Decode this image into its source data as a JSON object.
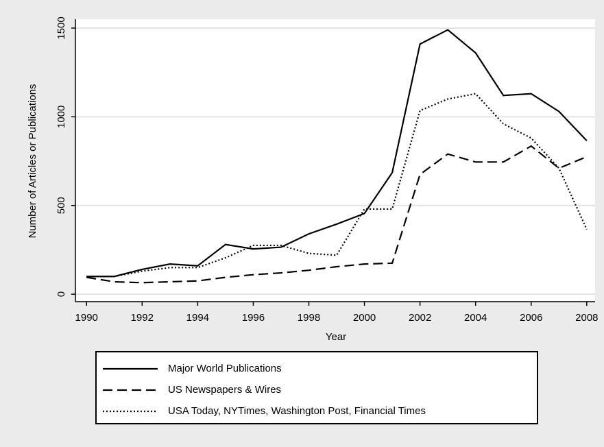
{
  "chart_data": {
    "type": "line",
    "x_label": "Year",
    "y_label": "Number of Articles or Publications",
    "x": [
      1990,
      1991,
      1992,
      1993,
      1994,
      1995,
      1996,
      1997,
      1998,
      1999,
      2000,
      2001,
      2002,
      2003,
      2004,
      2005,
      2006,
      2007,
      2008
    ],
    "xlim": [
      1989.6,
      2008.3
    ],
    "xticks": [
      1990,
      1992,
      1994,
      1996,
      1998,
      2000,
      2002,
      2004,
      2006,
      2008
    ],
    "ylim": [
      -42,
      1550
    ],
    "yticks": [
      0,
      500,
      1000,
      1500
    ],
    "grid": true,
    "legend": "bottom",
    "series": [
      {
        "name": "Major World Publications",
        "color": "#000000",
        "dash": "solid",
        "values": [
          100,
          100,
          140,
          170,
          160,
          280,
          255,
          265,
          340,
          395,
          455,
          685,
          1410,
          1490,
          1360,
          1120,
          1130,
          1030,
          865
        ]
      },
      {
        "name": "US Newspapers & Wires",
        "color": "#000000",
        "dash": "dashed",
        "values": [
          95,
          70,
          65,
          70,
          75,
          95,
          110,
          120,
          135,
          155,
          170,
          175,
          675,
          790,
          745,
          745,
          835,
          710,
          775
        ]
      },
      {
        "name": "USA Today, NYTimes, Washington Post, Financial Times",
        "color": "#000000",
        "dash": "dotted",
        "values": [
          100,
          100,
          130,
          150,
          150,
          205,
          275,
          275,
          230,
          220,
          480,
          480,
          1035,
          1100,
          1130,
          960,
          880,
          710,
          365
        ]
      }
    ]
  }
}
